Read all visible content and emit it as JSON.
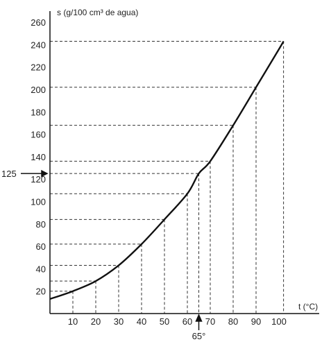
{
  "chart_data": {
    "type": "line",
    "xlabel": "t (°C)",
    "ylabel": "s (g/100 cm³ de agua)",
    "xlim": [
      0,
      106
    ],
    "ylim": [
      0,
      265
    ],
    "x_ticks": [
      10,
      20,
      30,
      40,
      50,
      60,
      70,
      80,
      90,
      100
    ],
    "y_ticks": [
      20,
      40,
      60,
      80,
      100,
      120,
      140,
      160,
      180,
      200,
      220,
      240,
      260
    ],
    "grid": false,
    "series": [
      {
        "x": [
          0,
          10,
          20,
          30,
          40,
          50,
          60,
          65,
          70,
          80,
          90,
          100,
          102
        ],
        "values": [
          13,
          20,
          29,
          43,
          62,
          84,
          107,
          125,
          136,
          168,
          202,
          236,
          243
        ]
      }
    ],
    "guides": [
      {
        "x": 10,
        "y": 20
      },
      {
        "x": 20,
        "y": 29
      },
      {
        "x": 30,
        "y": 43
      },
      {
        "x": 40,
        "y": 62
      },
      {
        "x": 50,
        "y": 84
      },
      {
        "x": 60,
        "y": 107
      },
      {
        "x": 65,
        "y": 125
      },
      {
        "x": 70,
        "y": 136
      },
      {
        "x": 80,
        "y": 168
      },
      {
        "x": 90,
        "y": 202
      },
      {
        "x": 102,
        "y": 243
      }
    ],
    "annotations": [
      {
        "text": "125",
        "axis": "y",
        "value": 125
      },
      {
        "text": "65°",
        "axis": "x",
        "value": 65
      }
    ]
  }
}
